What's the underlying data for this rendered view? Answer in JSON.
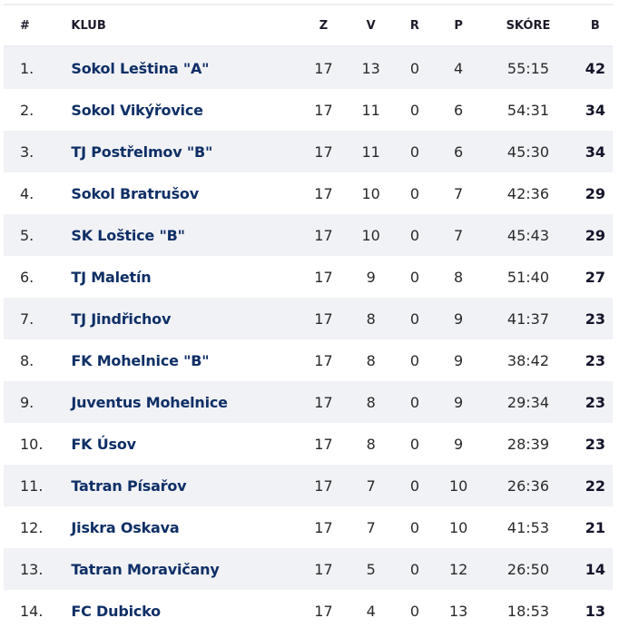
{
  "table": {
    "headers": {
      "pos": "#",
      "club": "KLUB",
      "played": "Z",
      "won": "V",
      "draw": "R",
      "lost": "P",
      "score": "SKÓRE",
      "points": "B"
    },
    "rows": [
      {
        "pos": "1.",
        "club": "Sokol Leština \"A\"",
        "played": "17",
        "won": "13",
        "draw": "0",
        "lost": "4",
        "score": "55:15",
        "points": "42"
      },
      {
        "pos": "2.",
        "club": "Sokol Vikýřovice",
        "played": "17",
        "won": "11",
        "draw": "0",
        "lost": "6",
        "score": "54:31",
        "points": "34"
      },
      {
        "pos": "3.",
        "club": "TJ Postřelmov \"B\"",
        "played": "17",
        "won": "11",
        "draw": "0",
        "lost": "6",
        "score": "45:30",
        "points": "34"
      },
      {
        "pos": "4.",
        "club": "Sokol Bratrušov",
        "played": "17",
        "won": "10",
        "draw": "0",
        "lost": "7",
        "score": "42:36",
        "points": "29"
      },
      {
        "pos": "5.",
        "club": "SK Loštice \"B\"",
        "played": "17",
        "won": "10",
        "draw": "0",
        "lost": "7",
        "score": "45:43",
        "points": "29"
      },
      {
        "pos": "6.",
        "club": "TJ Maletín",
        "played": "17",
        "won": "9",
        "draw": "0",
        "lost": "8",
        "score": "51:40",
        "points": "27"
      },
      {
        "pos": "7.",
        "club": "TJ Jindřichov",
        "played": "17",
        "won": "8",
        "draw": "0",
        "lost": "9",
        "score": "41:37",
        "points": "23"
      },
      {
        "pos": "8.",
        "club": "FK Mohelnice \"B\"",
        "played": "17",
        "won": "8",
        "draw": "0",
        "lost": "9",
        "score": "38:42",
        "points": "23"
      },
      {
        "pos": "9.",
        "club": "Juventus Mohelnice",
        "played": "17",
        "won": "8",
        "draw": "0",
        "lost": "9",
        "score": "29:34",
        "points": "23"
      },
      {
        "pos": "10.",
        "club": "FK Úsov",
        "played": "17",
        "won": "8",
        "draw": "0",
        "lost": "9",
        "score": "28:39",
        "points": "23"
      },
      {
        "pos": "11.",
        "club": "Tatran Písařov",
        "played": "17",
        "won": "7",
        "draw": "0",
        "lost": "10",
        "score": "26:36",
        "points": "22"
      },
      {
        "pos": "12.",
        "club": "Jiskra Oskava",
        "played": "17",
        "won": "7",
        "draw": "0",
        "lost": "10",
        "score": "41:53",
        "points": "21"
      },
      {
        "pos": "13.",
        "club": "Tatran Moravičany",
        "played": "17",
        "won": "5",
        "draw": "0",
        "lost": "12",
        "score": "26:50",
        "points": "14"
      },
      {
        "pos": "14.",
        "club": "FC Dubicko",
        "played": "17",
        "won": "4",
        "draw": "0",
        "lost": "13",
        "score": "18:53",
        "points": "13"
      }
    ]
  },
  "colors": {
    "club_link": "#0f2f66",
    "stripe": "#f1f2f6",
    "text": "#2a2a2a"
  }
}
